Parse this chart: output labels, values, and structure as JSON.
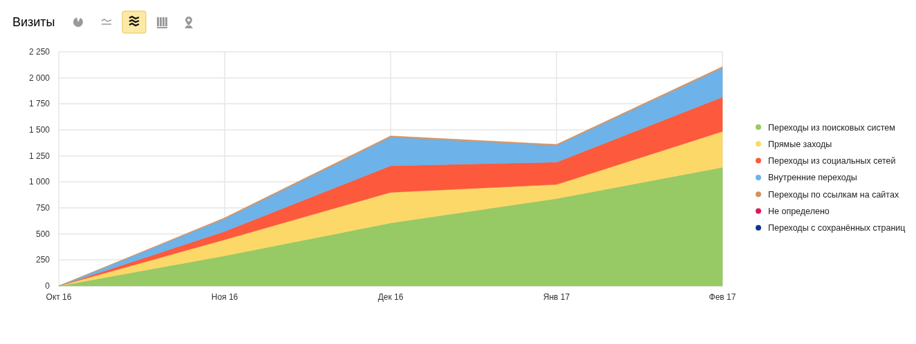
{
  "chart_data": {
    "type": "area",
    "title": "Визиты",
    "stacked": true,
    "grid": true,
    "legend": "right",
    "categories": [
      "Окт 16",
      "Ноя 16",
      "Дек 16",
      "Янв 17",
      "Фев 17"
    ],
    "ylim": [
      0,
      2250
    ],
    "yticks": [
      0,
      250,
      500,
      750,
      {
        "value": 1000,
        "label": "1 000"
      },
      {
        "value": 1250,
        "label": "1 250"
      },
      {
        "value": 1500,
        "label": "1 500"
      },
      {
        "value": 1750,
        "label": "1 750"
      },
      {
        "value": 2000,
        "label": "2 000"
      },
      {
        "value": 2250,
        "label": "2 250"
      }
    ],
    "series": [
      {
        "name": "Переходы из поисковых систем",
        "color": "#97c965",
        "values": [
          0,
          290,
          605,
          840,
          1140
        ]
      },
      {
        "name": "Прямые заходы",
        "color": "#fcd868",
        "values": [
          0,
          155,
          295,
          135,
          345
        ]
      },
      {
        "name": "Переходы из социальных сетей",
        "color": "#fd593c",
        "values": [
          0,
          80,
          255,
          215,
          330
        ]
      },
      {
        "name": "Внутренние переходы",
        "color": "#6db2e8",
        "values": [
          0,
          120,
          275,
          160,
          280
        ]
      },
      {
        "name": "Переходы по ссылкам на сайтах",
        "color": "#d5905d",
        "values": [
          0,
          10,
          12,
          10,
          12
        ]
      },
      {
        "name": "Не определено",
        "color": "#e0175c",
        "values": [
          null,
          null,
          null,
          null,
          null
        ]
      },
      {
        "name": "Переходы с сохранённых страниц",
        "color": "#0c3594",
        "values": [
          null,
          null,
          null,
          null,
          null
        ]
      }
    ]
  }
}
